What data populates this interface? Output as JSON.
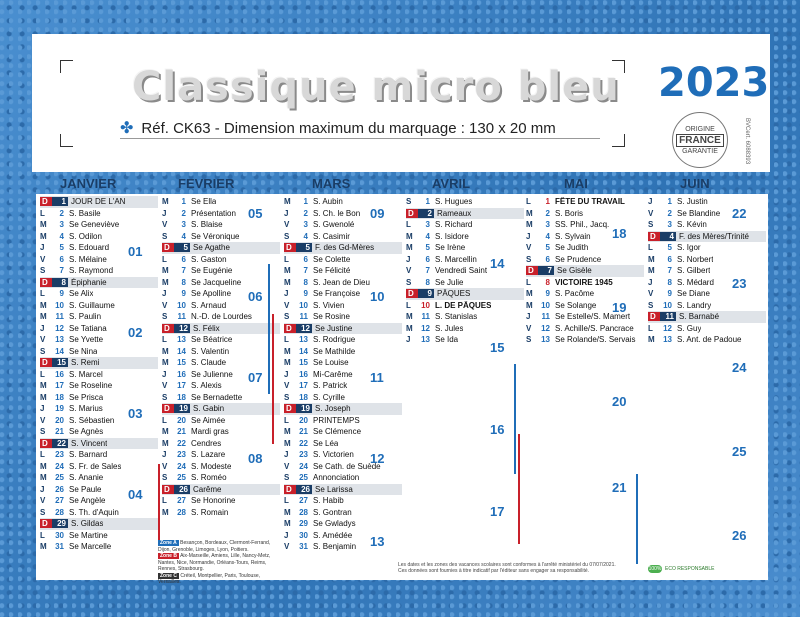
{
  "title": "Classique micro bleu",
  "year": "2023",
  "ref": "Réf. CK63 - Dimension maximum du marquage : 130 x 20 mm",
  "badge": {
    "top": "ORIGINE",
    "mid": "FRANCE",
    "bottom": "GARANTIE"
  },
  "side_code": "BVCert. 6088393",
  "months": [
    "JANVIER",
    "FEVRIER",
    "MARS",
    "AVRIL",
    "MAI",
    "JUIN"
  ],
  "zones_text": {
    "a": "Zone A",
    "a_txt": "Besançon, Bordeaux, Clermont-Ferrand, Dijon, Grenoble, Limoges, Lyon, Poitiers.",
    "b": "Zone B",
    "b_txt": "Aix-Marseille, Amiens, Lille, Nancy-Metz, Nantes, Nice, Normandie, Orléans-Tours, Reims, Rennes, Strasbourg.",
    "c": "Zone C",
    "c_txt": "Créteil, Montpellier, Paris, Toulouse, Versailles."
  },
  "legal": "Les dates et les zones des vacances scolaires sont conformes à l'arrêté ministériel du 07/07/2021. Ces données sont fournies à titre indicatif par l'éditeur sans engager sa responsabilité.",
  "eco": {
    "badge": "100%",
    "text": "ECO RESPONSABLE"
  },
  "weeks": {
    "jan": [
      "01",
      "02",
      "03",
      "04"
    ],
    "feb": [
      "05",
      "06",
      "07",
      "08"
    ],
    "mar": [
      "09",
      "10",
      "11",
      "12",
      "13"
    ],
    "apr": [
      "14",
      "15",
      "16",
      "17"
    ],
    "may": [
      "18",
      "19",
      "20",
      "21"
    ],
    "jun": [
      "22",
      "23",
      "24",
      "25",
      "26"
    ]
  },
  "calendar": {
    "jan": [
      [
        "D",
        "1",
        "JOUR DE L'AN",
        "sun"
      ],
      [
        "L",
        "2",
        "S. Basile",
        ""
      ],
      [
        "M",
        "3",
        "Se Geneviève",
        ""
      ],
      [
        "M",
        "4",
        "S. Odilon",
        ""
      ],
      [
        "J",
        "5",
        "S. Edouard",
        ""
      ],
      [
        "V",
        "6",
        "S. Mélaine",
        ""
      ],
      [
        "S",
        "7",
        "S. Raymond",
        ""
      ],
      [
        "D",
        "8",
        "Épiphanie",
        "sun"
      ],
      [
        "L",
        "9",
        "Se Alix",
        ""
      ],
      [
        "M",
        "10",
        "S. Guillaume",
        ""
      ],
      [
        "M",
        "11",
        "S. Paulin",
        ""
      ],
      [
        "J",
        "12",
        "Se Tatiana",
        ""
      ],
      [
        "V",
        "13",
        "Se Yvette",
        ""
      ],
      [
        "S",
        "14",
        "Se Nina",
        ""
      ],
      [
        "D",
        "15",
        "S. Remi",
        "sun"
      ],
      [
        "L",
        "16",
        "S. Marcel",
        ""
      ],
      [
        "M",
        "17",
        "Se Roseline",
        ""
      ],
      [
        "M",
        "18",
        "Se Prisca",
        ""
      ],
      [
        "J",
        "19",
        "S. Marius",
        ""
      ],
      [
        "V",
        "20",
        "S. Sébastien",
        ""
      ],
      [
        "S",
        "21",
        "Se Agnès",
        ""
      ],
      [
        "D",
        "22",
        "S. Vincent",
        "sun"
      ],
      [
        "L",
        "23",
        "S. Barnard",
        ""
      ],
      [
        "M",
        "24",
        "S. Fr. de Sales",
        ""
      ],
      [
        "M",
        "25",
        "S. Ananie",
        ""
      ],
      [
        "J",
        "26",
        "Se Paule",
        ""
      ],
      [
        "V",
        "27",
        "Se Angèle",
        ""
      ],
      [
        "S",
        "28",
        "S. Th. d'Aquin",
        ""
      ],
      [
        "D",
        "29",
        "S. Gildas",
        "sun"
      ],
      [
        "L",
        "30",
        "Se Martine",
        ""
      ],
      [
        "M",
        "31",
        "Se Marcelle",
        ""
      ]
    ],
    "feb": [
      [
        "M",
        "1",
        "Se Ella",
        ""
      ],
      [
        "J",
        "2",
        "Présentation",
        ""
      ],
      [
        "V",
        "3",
        "S. Blaise",
        ""
      ],
      [
        "S",
        "4",
        "Se Véronique",
        ""
      ],
      [
        "D",
        "5",
        "Se Agathe",
        "sun"
      ],
      [
        "L",
        "6",
        "S. Gaston",
        ""
      ],
      [
        "M",
        "7",
        "Se Eugénie",
        ""
      ],
      [
        "M",
        "8",
        "Se Jacqueline",
        ""
      ],
      [
        "J",
        "9",
        "Se Apolline",
        ""
      ],
      [
        "V",
        "10",
        "S. Arnaud",
        ""
      ],
      [
        "S",
        "11",
        "N.-D. de Lourdes",
        ""
      ],
      [
        "D",
        "12",
        "S. Félix",
        "sun"
      ],
      [
        "L",
        "13",
        "Se Béatrice",
        ""
      ],
      [
        "M",
        "14",
        "S. Valentin",
        ""
      ],
      [
        "M",
        "15",
        "S. Claude",
        ""
      ],
      [
        "J",
        "16",
        "Se Julienne",
        ""
      ],
      [
        "V",
        "17",
        "S. Alexis",
        ""
      ],
      [
        "S",
        "18",
        "Se Bernadette",
        ""
      ],
      [
        "D",
        "19",
        "S. Gabin",
        "sun"
      ],
      [
        "L",
        "20",
        "Se Aimée",
        ""
      ],
      [
        "M",
        "21",
        "Mardi gras",
        ""
      ],
      [
        "M",
        "22",
        "Cendres",
        ""
      ],
      [
        "J",
        "23",
        "S. Lazare",
        ""
      ],
      [
        "V",
        "24",
        "S. Modeste",
        ""
      ],
      [
        "S",
        "25",
        "S. Roméo",
        ""
      ],
      [
        "D",
        "26",
        "Carême",
        "sun"
      ],
      [
        "L",
        "27",
        "Se Honorine",
        ""
      ],
      [
        "M",
        "28",
        "S. Romain",
        ""
      ]
    ],
    "mar": [
      [
        "M",
        "1",
        "S. Aubin",
        ""
      ],
      [
        "J",
        "2",
        "S. Ch. le Bon",
        ""
      ],
      [
        "V",
        "3",
        "S. Gwenolé",
        ""
      ],
      [
        "S",
        "4",
        "S. Casimir",
        ""
      ],
      [
        "D",
        "5",
        "F. des Gd-Mères",
        "sun"
      ],
      [
        "L",
        "6",
        "Se Colette",
        ""
      ],
      [
        "M",
        "7",
        "Se Félicité",
        ""
      ],
      [
        "M",
        "8",
        "S. Jean de Dieu",
        ""
      ],
      [
        "J",
        "9",
        "Se Françoise",
        ""
      ],
      [
        "V",
        "10",
        "S. Vivien",
        ""
      ],
      [
        "S",
        "11",
        "Se Rosine",
        ""
      ],
      [
        "D",
        "12",
        "Se Justine",
        "sun"
      ],
      [
        "L",
        "13",
        "S. Rodrigue",
        ""
      ],
      [
        "M",
        "14",
        "Se Mathilde",
        ""
      ],
      [
        "M",
        "15",
        "Se Louise",
        ""
      ],
      [
        "J",
        "16",
        "Mi-Carême",
        ""
      ],
      [
        "V",
        "17",
        "S. Patrick",
        ""
      ],
      [
        "S",
        "18",
        "S. Cyrille",
        ""
      ],
      [
        "D",
        "19",
        "S. Joseph",
        "sun"
      ],
      [
        "L",
        "20",
        "PRINTEMPS",
        ""
      ],
      [
        "M",
        "21",
        "Se Clémence",
        ""
      ],
      [
        "M",
        "22",
        "Se Léa",
        ""
      ],
      [
        "J",
        "23",
        "S. Victorien",
        ""
      ],
      [
        "V",
        "24",
        "Se Cath. de Suède",
        ""
      ],
      [
        "S",
        "25",
        "Annonciation",
        ""
      ],
      [
        "D",
        "26",
        "Se Larissa",
        "sun"
      ],
      [
        "L",
        "27",
        "S. Habib",
        ""
      ],
      [
        "M",
        "28",
        "S. Gontran",
        ""
      ],
      [
        "M",
        "29",
        "Se Gwladys",
        ""
      ],
      [
        "J",
        "30",
        "S. Amédée",
        ""
      ],
      [
        "V",
        "31",
        "S. Benjamin",
        ""
      ]
    ],
    "apr": [
      [
        "S",
        "1",
        "S. Hugues",
        ""
      ],
      [
        "D",
        "2",
        "Rameaux",
        "sun"
      ],
      [
        "L",
        "3",
        "S. Richard",
        ""
      ],
      [
        "M",
        "4",
        "S. Isidore",
        ""
      ],
      [
        "M",
        "5",
        "Se Irène",
        ""
      ],
      [
        "J",
        "6",
        "S. Marcellin",
        ""
      ],
      [
        "V",
        "7",
        "Vendredi Saint",
        ""
      ],
      [
        "S",
        "8",
        "Se Julie",
        ""
      ],
      [
        "D",
        "9",
        "PÂQUES",
        "sun"
      ],
      [
        "L",
        "10",
        "L. DE PÂQUES",
        "hol"
      ],
      [
        "M",
        "11",
        "S. Stanislas",
        ""
      ],
      [
        "M",
        "12",
        "S. Jules",
        ""
      ],
      [
        "J",
        "13",
        "Se Ida",
        ""
      ]
    ],
    "may": [
      [
        "L",
        "1",
        "FÊTE DU TRAVAIL",
        "hol"
      ],
      [
        "M",
        "2",
        "S. Boris",
        ""
      ],
      [
        "M",
        "3",
        "SS. Phil., Jacq.",
        ""
      ],
      [
        "J",
        "4",
        "S. Sylvain",
        ""
      ],
      [
        "V",
        "5",
        "Se Judith",
        ""
      ],
      [
        "S",
        "6",
        "Se Prudence",
        ""
      ],
      [
        "D",
        "7",
        "Se Gisèle",
        "sun"
      ],
      [
        "L",
        "8",
        "VICTOIRE 1945",
        "hol"
      ],
      [
        "M",
        "9",
        "S. Pacôme",
        ""
      ],
      [
        "M",
        "10",
        "Se Solange",
        ""
      ],
      [
        "J",
        "11",
        "Se Estelle/S. Mamert",
        ""
      ],
      [
        "V",
        "12",
        "S. Achille/S. Pancrace",
        ""
      ],
      [
        "S",
        "13",
        "Se Rolande/S. Servais",
        ""
      ]
    ],
    "jun": [
      [
        "J",
        "1",
        "S. Justin",
        ""
      ],
      [
        "V",
        "2",
        "Se Blandine",
        ""
      ],
      [
        "S",
        "3",
        "S. Kévin",
        ""
      ],
      [
        "D",
        "4",
        "F. des Mères/Trinité",
        "sun"
      ],
      [
        "L",
        "5",
        "S. Igor",
        ""
      ],
      [
        "M",
        "6",
        "S. Norbert",
        ""
      ],
      [
        "M",
        "7",
        "S. Gilbert",
        ""
      ],
      [
        "J",
        "8",
        "S. Médard",
        ""
      ],
      [
        "V",
        "9",
        "Se Diane",
        ""
      ],
      [
        "S",
        "10",
        "S. Landry",
        ""
      ],
      [
        "D",
        "11",
        "S. Barnabé",
        "sun"
      ],
      [
        "L",
        "12",
        "S. Guy",
        ""
      ],
      [
        "M",
        "13",
        "S. Ant. de Padoue",
        ""
      ]
    ]
  }
}
